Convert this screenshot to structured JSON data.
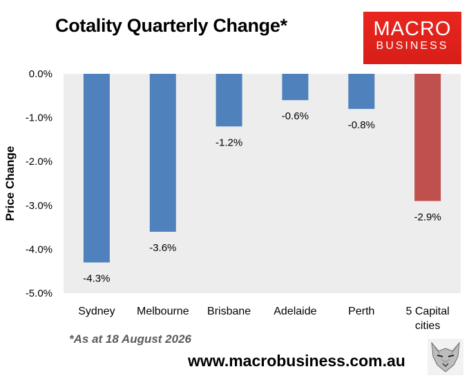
{
  "title": "Cotality Quarterly Change*",
  "logo": {
    "line1": "MACRO",
    "line2": "BUSINESS"
  },
  "footnote": "*As at 18 August 2026",
  "website": "www.macrobusiness.com.au",
  "chart_data": {
    "type": "bar",
    "title": "Cotality Quarterly Change*",
    "xlabel": "",
    "ylabel": "Price Change",
    "ylim": [
      -5.0,
      0.0
    ],
    "yticks": [
      "0.0%",
      "-1.0%",
      "-2.0%",
      "-3.0%",
      "-4.0%",
      "-5.0%"
    ],
    "categories": [
      "Sydney",
      "Melbourne",
      "Brisbane",
      "Adelaide",
      "Perth",
      "5 Capital cities"
    ],
    "category_lines": [
      [
        "Sydney"
      ],
      [
        "Melbourne"
      ],
      [
        "Brisbane"
      ],
      [
        "Adelaide"
      ],
      [
        "Perth"
      ],
      [
        "5 Capital",
        "cities"
      ]
    ],
    "values": [
      -4.3,
      -3.6,
      -1.2,
      -0.6,
      -0.8,
      -2.9
    ],
    "data_labels": [
      "-4.3%",
      "-3.6%",
      "-1.2%",
      "-0.6%",
      "-0.8%",
      "-2.9%"
    ],
    "colors": [
      "#4f81bd",
      "#4f81bd",
      "#4f81bd",
      "#4f81bd",
      "#4f81bd",
      "#c0504d"
    ],
    "plot_background": "#ededed",
    "grid": false,
    "legend": "none"
  }
}
